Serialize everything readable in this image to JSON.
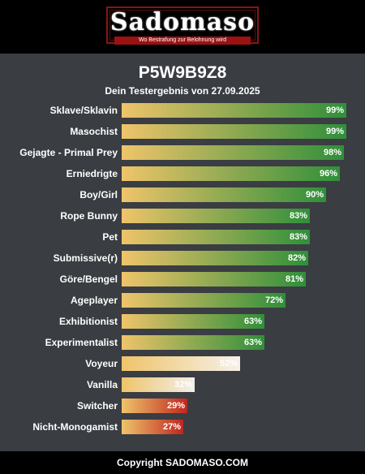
{
  "header": {
    "logo_text": "Sadomaso",
    "tagline": "Wo Bestrafung zur Belohnung wird"
  },
  "title": "P5W9B9Z8",
  "subtitle": "Dein Testergebnis von 27.09.2025",
  "chart_data": {
    "type": "bar",
    "orientation": "horizontal",
    "xlim": [
      0,
      100
    ],
    "categories": [
      "Sklave/Sklavin",
      "Masochist",
      "Gejagte - Primal Prey",
      "Erniedrigte",
      "Boy/Girl",
      "Rope Bunny",
      "Pet",
      "Submissive(r)",
      "Göre/Bengel",
      "Ageplayer",
      "Exhibitionist",
      "Experimentalist",
      "Voyeur",
      "Vanilla",
      "Switcher",
      "Nicht-Monogamist"
    ],
    "values": [
      99,
      99,
      98,
      96,
      90,
      83,
      83,
      82,
      81,
      72,
      63,
      63,
      52,
      32,
      29,
      27
    ],
    "value_labels": [
      "99%",
      "99%",
      "98%",
      "96%",
      "90%",
      "83%",
      "83%",
      "82%",
      "81%",
      "72%",
      "63%",
      "63%",
      "52%",
      "32%",
      "29%",
      "27%"
    ],
    "colors": {
      "bar_start": "#efc46a",
      "high": "#2f8f3a",
      "low": "#c0261f",
      "neutral": "#ffffff"
    }
  },
  "footer": {
    "copyright": "Copyright SADOMASO.COM"
  }
}
